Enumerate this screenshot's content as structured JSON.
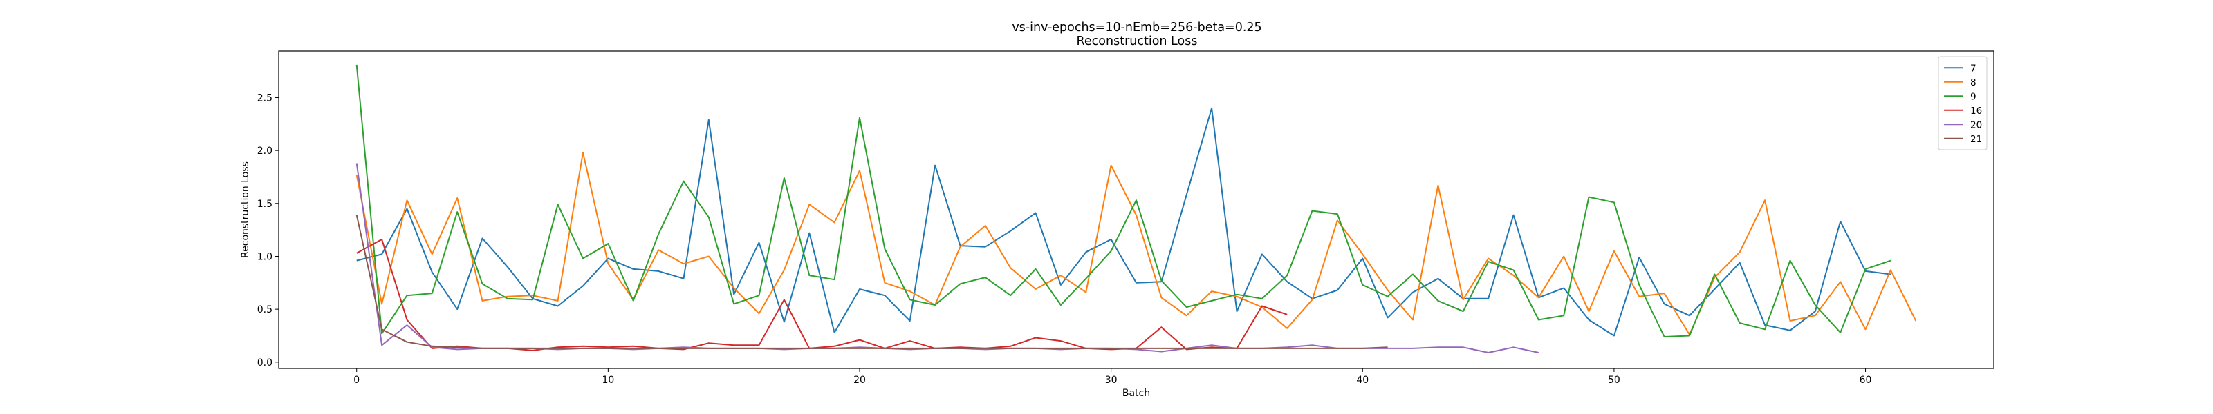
{
  "chart_data": {
    "type": "line",
    "title": "vs-inv-epochs=10-nEmb=256-beta=0.25",
    "subtitle": "Reconstruction Loss",
    "xlabel": "Batch",
    "ylabel": "Reconstruction Loss",
    "xlim": [
      -3.1,
      65.1
    ],
    "ylim": [
      -0.06,
      2.94
    ],
    "xticks": [
      0,
      10,
      20,
      30,
      40,
      50,
      60
    ],
    "yticks": [
      0.0,
      0.5,
      1.0,
      1.5,
      2.0,
      2.5
    ],
    "ytick_labels": [
      "0.0",
      "0.5",
      "1.0",
      "1.5",
      "2.0",
      "2.5"
    ],
    "grid": false,
    "legend_position": "top-right",
    "series": [
      {
        "name": "7",
        "color": "#1f77b4",
        "x": [
          0,
          1,
          2,
          3,
          4,
          5,
          6,
          7,
          8,
          9,
          10,
          11,
          12,
          13,
          14,
          15,
          16,
          17,
          18,
          19,
          20,
          21,
          22,
          23,
          24,
          25,
          26,
          27,
          28,
          29,
          30,
          31,
          32,
          33,
          34,
          35,
          36,
          37,
          38,
          39,
          40,
          41,
          42,
          43,
          44,
          45,
          46,
          47,
          48,
          49,
          50,
          51,
          52,
          53,
          54,
          55,
          56,
          57,
          58,
          59,
          60,
          61
        ],
        "values": [
          0.96,
          1.02,
          1.45,
          0.85,
          0.5,
          1.17,
          0.9,
          0.6,
          0.53,
          0.72,
          0.98,
          0.88,
          0.86,
          0.79,
          2.29,
          0.64,
          1.13,
          0.38,
          1.22,
          0.28,
          0.69,
          0.63,
          0.39,
          1.86,
          1.1,
          1.09,
          1.24,
          1.41,
          0.73,
          1.04,
          1.16,
          0.75,
          0.76,
          1.58,
          2.4,
          0.48,
          1.02,
          0.76,
          0.6,
          0.68,
          0.98,
          0.42,
          0.66,
          0.79,
          0.6,
          0.6,
          1.39,
          0.61,
          0.7,
          0.4,
          0.25,
          0.99,
          0.55,
          0.44,
          0.69,
          0.94,
          0.35,
          0.3,
          0.48,
          1.33,
          0.86,
          0.83
        ]
      },
      {
        "name": "8",
        "color": "#ff7f0e",
        "x": [
          0,
          1,
          2,
          3,
          4,
          5,
          6,
          7,
          8,
          9,
          10,
          11,
          12,
          13,
          14,
          15,
          16,
          17,
          18,
          19,
          20,
          21,
          22,
          23,
          24,
          25,
          26,
          27,
          28,
          29,
          30,
          31,
          32,
          33,
          34,
          35,
          36,
          37,
          38,
          39,
          40,
          41,
          42,
          43,
          44,
          45,
          46,
          47,
          48,
          49,
          50,
          51,
          52,
          53,
          54,
          55,
          56,
          57,
          58,
          59,
          60,
          61,
          62
        ],
        "values": [
          1.77,
          0.55,
          1.53,
          1.02,
          1.55,
          0.58,
          0.62,
          0.63,
          0.58,
          1.98,
          0.93,
          0.59,
          1.06,
          0.93,
          1.0,
          0.7,
          0.46,
          0.87,
          1.49,
          1.32,
          1.81,
          0.75,
          0.67,
          0.54,
          1.09,
          1.29,
          0.89,
          0.69,
          0.82,
          0.66,
          1.86,
          1.39,
          0.61,
          0.44,
          0.67,
          0.62,
          0.52,
          0.32,
          0.59,
          1.34,
          1.02,
          0.68,
          0.4,
          1.67,
          0.59,
          0.98,
          0.82,
          0.61,
          1.0,
          0.48,
          1.05,
          0.62,
          0.65,
          0.26,
          0.8,
          1.04,
          1.53,
          0.39,
          0.44,
          0.76,
          0.31,
          0.87,
          0.39
        ]
      },
      {
        "name": "9",
        "color": "#2ca02c",
        "x": [
          0,
          1,
          2,
          3,
          4,
          5,
          6,
          7,
          8,
          9,
          10,
          11,
          12,
          13,
          14,
          15,
          16,
          17,
          18,
          19,
          20,
          21,
          22,
          23,
          24,
          25,
          26,
          27,
          28,
          29,
          30,
          31,
          32,
          33,
          34,
          35,
          36,
          37,
          38,
          39,
          40,
          41,
          42,
          43,
          44,
          45,
          46,
          47,
          48,
          49,
          50,
          51,
          52,
          53,
          54,
          55,
          56,
          57,
          58,
          59,
          60,
          61
        ],
        "values": [
          2.81,
          0.27,
          0.63,
          0.65,
          1.42,
          0.74,
          0.6,
          0.59,
          1.49,
          0.98,
          1.12,
          0.58,
          1.21,
          1.71,
          1.37,
          0.55,
          0.63,
          1.74,
          0.82,
          0.78,
          2.31,
          1.07,
          0.59,
          0.54,
          0.74,
          0.8,
          0.63,
          0.88,
          0.54,
          0.79,
          1.05,
          1.53,
          0.77,
          0.52,
          0.58,
          0.64,
          0.6,
          0.82,
          1.43,
          1.4,
          0.73,
          0.62,
          0.83,
          0.58,
          0.48,
          0.95,
          0.87,
          0.4,
          0.44,
          1.56,
          1.51,
          0.73,
          0.24,
          0.25,
          0.83,
          0.37,
          0.31,
          0.96,
          0.54,
          0.28,
          0.88,
          0.96
        ]
      },
      {
        "name": "16",
        "color": "#d62728",
        "x": [
          0,
          1,
          2,
          3,
          4,
          5,
          6,
          7,
          8,
          9,
          10,
          11,
          12,
          13,
          14,
          15,
          16,
          17,
          18,
          19,
          20,
          21,
          22,
          23,
          24,
          25,
          26,
          27,
          28,
          29,
          30,
          31,
          32,
          33,
          34,
          35,
          36,
          37
        ],
        "values": [
          1.03,
          1.16,
          0.4,
          0.13,
          0.15,
          0.13,
          0.13,
          0.11,
          0.14,
          0.15,
          0.14,
          0.15,
          0.13,
          0.12,
          0.18,
          0.16,
          0.16,
          0.59,
          0.13,
          0.15,
          0.21,
          0.13,
          0.2,
          0.13,
          0.14,
          0.13,
          0.15,
          0.23,
          0.2,
          0.13,
          0.12,
          0.13,
          0.33,
          0.12,
          0.14,
          0.13,
          0.53,
          0.45
        ]
      },
      {
        "name": "20",
        "color": "#9467bd",
        "x": [
          0,
          1,
          2,
          3,
          4,
          5,
          6,
          7,
          8,
          9,
          10,
          11,
          12,
          13,
          14,
          15,
          16,
          17,
          18,
          19,
          20,
          21,
          22,
          23,
          24,
          25,
          26,
          27,
          28,
          29,
          30,
          31,
          32,
          33,
          34,
          35,
          36,
          37,
          38,
          39,
          40,
          41,
          42,
          43,
          44,
          45,
          46,
          47
        ],
        "values": [
          1.88,
          0.16,
          0.35,
          0.14,
          0.12,
          0.13,
          0.13,
          0.13,
          0.12,
          0.13,
          0.13,
          0.12,
          0.13,
          0.14,
          0.13,
          0.13,
          0.13,
          0.12,
          0.13,
          0.13,
          0.14,
          0.13,
          0.12,
          0.13,
          0.13,
          0.12,
          0.13,
          0.13,
          0.12,
          0.13,
          0.13,
          0.12,
          0.1,
          0.13,
          0.16,
          0.13,
          0.13,
          0.14,
          0.16,
          0.13,
          0.13,
          0.13,
          0.13,
          0.14,
          0.14,
          0.09,
          0.14,
          0.09
        ]
      },
      {
        "name": "21",
        "color": "#8c564b",
        "x": [
          0,
          1,
          2,
          3,
          4,
          5,
          6,
          7,
          8,
          9,
          10,
          11,
          12,
          13,
          14,
          15,
          16,
          17,
          18,
          19,
          20,
          21,
          22,
          23,
          24,
          25,
          26,
          27,
          28,
          29,
          30,
          31,
          32,
          33,
          34,
          35,
          36,
          37,
          38,
          39,
          40,
          41
        ],
        "values": [
          1.39,
          0.31,
          0.19,
          0.15,
          0.14,
          0.13,
          0.13,
          0.13,
          0.13,
          0.13,
          0.13,
          0.13,
          0.13,
          0.13,
          0.13,
          0.13,
          0.13,
          0.13,
          0.13,
          0.13,
          0.13,
          0.13,
          0.13,
          0.13,
          0.13,
          0.13,
          0.13,
          0.13,
          0.13,
          0.13,
          0.13,
          0.13,
          0.13,
          0.13,
          0.13,
          0.13,
          0.13,
          0.13,
          0.13,
          0.13,
          0.13,
          0.14
        ]
      }
    ]
  }
}
